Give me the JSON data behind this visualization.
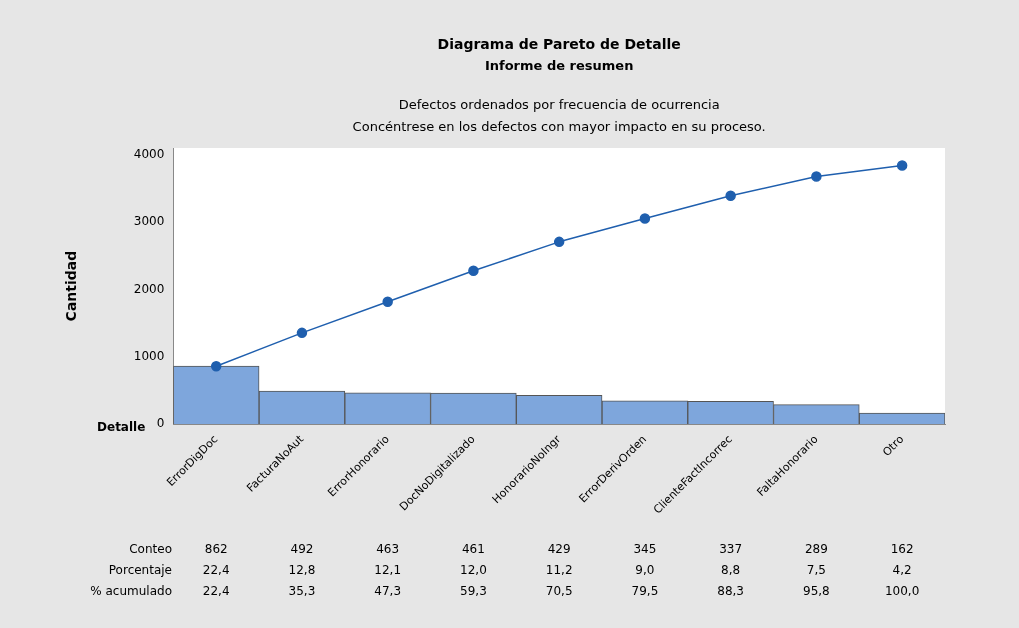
{
  "chart_data": {
    "type": "bar",
    "title": "Diagrama de Pareto de Detalle",
    "subtitle": "Informe de resumen",
    "xlabel": "Detalle",
    "ylabel": "Cantidad",
    "categories": [
      "ErrorDigDoc",
      "FacturaNoAut",
      "ErrorHonorario",
      "DocNoDigitalizado",
      "HonorarioNoIngr",
      "ErrorDerivOrden",
      "ClienteFactIncorrec",
      "FaltaHonorario",
      "Otro"
    ],
    "series": [
      {
        "color": "#7ea6dc",
        "values": [
          862,
          492,
          463,
          461,
          429,
          345,
          337,
          289,
          162
        ],
        "value_labels": [
          "862",
          "492",
          "463",
          "461",
          "429",
          "345",
          "337",
          "289",
          "162"
        ]
      },
      {
        "type": "line",
        "axis": "y2",
        "color": "#1f5fae",
        "values": [
          22.4,
          35.3,
          47.3,
          59.3,
          70.5,
          79.5,
          88.3,
          95.8,
          100.0
        ],
        "value_labels": [
          "22,4",
          "35,3",
          "47,3",
          "59,3",
          "70,5",
          "79,5",
          "88,3",
          "95,8",
          "100,0"
        ]
      }
    ],
    "annotations": [
      "Defectos ordenados por frecuencia de ocurrencia",
      "Concéntrese en los defectos con mayor impacto en su proceso.",
      "Conteo",
      "Porcentaje",
      "% acumulado",
      "22,4",
      "12,8",
      "12,1",
      "12,0",
      "11,2",
      "9,0",
      "8,8",
      "7,5",
      "4,2"
    ],
    "ylim": [
      0,
      4100
    ],
    "yticks": [
      0,
      1000,
      2000,
      3000,
      4000
    ],
    "y2lim": [
      0,
      106.8
    ],
    "tick_labels": "xy",
    "grid": false,
    "legend": false,
    "marker": "circle",
    "line_style": "solid"
  }
}
